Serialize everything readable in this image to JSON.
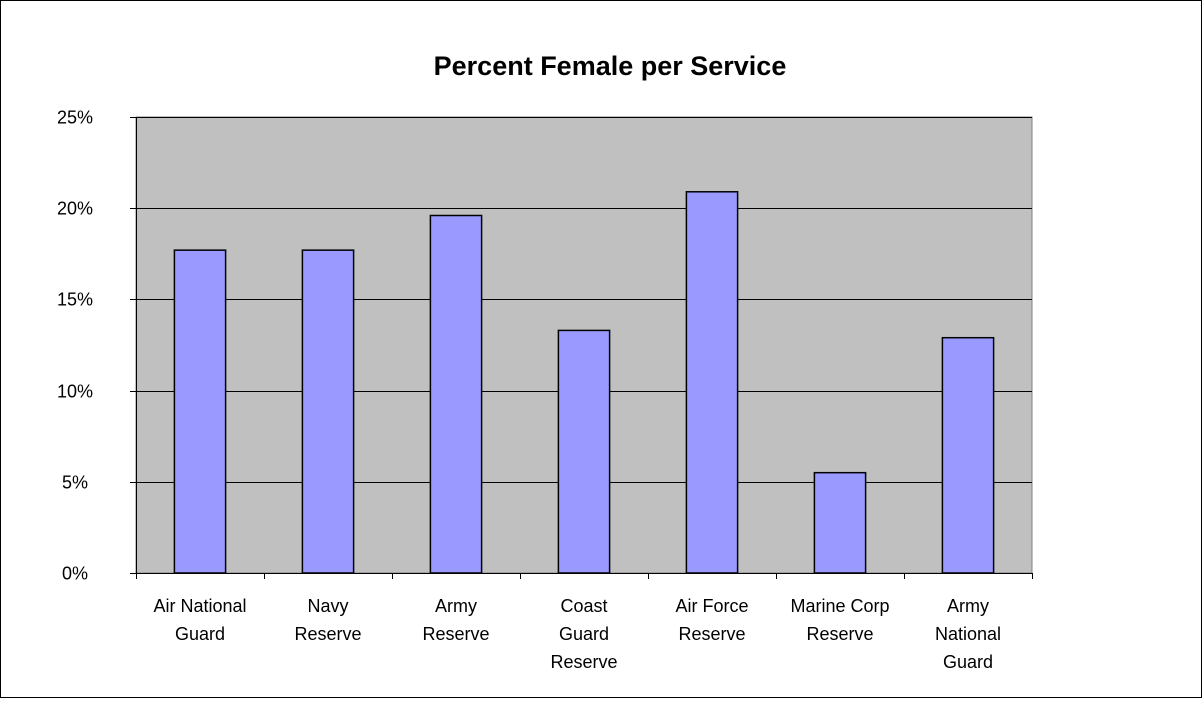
{
  "chart_data": {
    "type": "bar",
    "title": "Percent Female per Service",
    "xlabel": "",
    "ylabel": "",
    "categories": [
      [
        "Air National",
        "Guard"
      ],
      [
        "Navy",
        "Reserve"
      ],
      [
        "Army",
        "Reserve"
      ],
      [
        "Coast",
        "Guard",
        "Reserve"
      ],
      [
        "Air Force",
        "Reserve"
      ],
      [
        "Marine Corp",
        "Reserve"
      ],
      [
        "Army",
        "National",
        "Guard"
      ]
    ],
    "values": [
      17.7,
      17.7,
      19.6,
      13.3,
      20.9,
      5.5,
      12.9
    ],
    "ylim": [
      0,
      25
    ],
    "yticks": [
      0,
      5,
      10,
      15,
      20,
      25
    ],
    "ytick_labels": [
      "0%",
      "5%",
      "10%",
      "15%",
      "20%",
      "25%"
    ],
    "grid": true,
    "legend": "none",
    "colors": {
      "bar_fill": "#9999ff",
      "bar_stroke": "#000000",
      "plot_background": "#c0c0c0",
      "gridline": "#000000",
      "page_background": "#ffffff"
    }
  }
}
